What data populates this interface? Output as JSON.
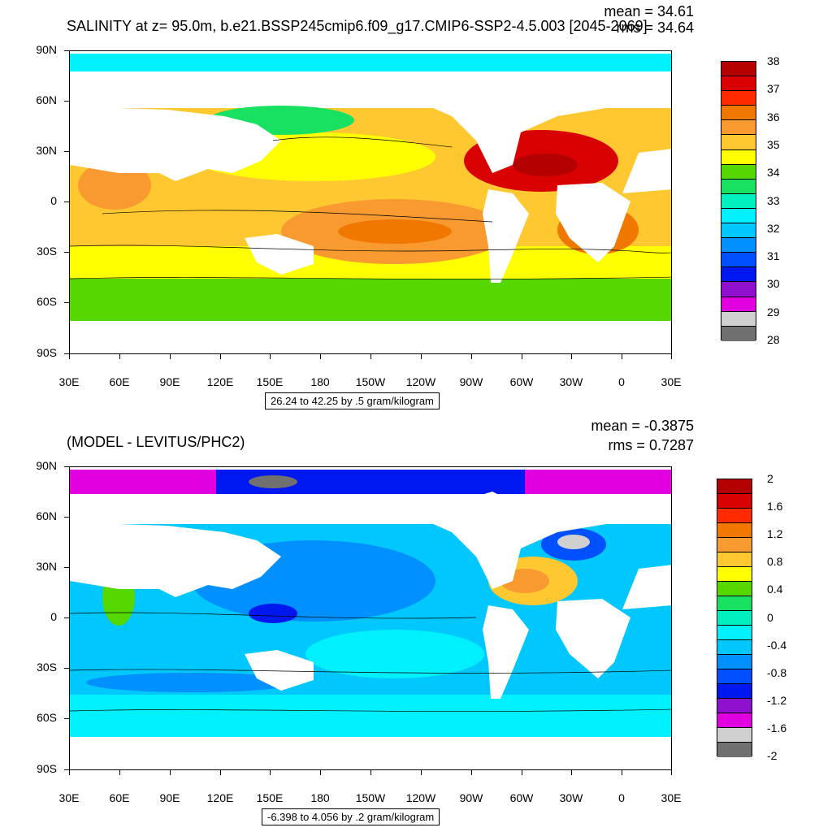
{
  "top": {
    "title": "SALINITY at z=  95.0m, b.e21.BSSP245cmip6.f09_g17.CMIP6-SSP2-4.5.003 [2045-2069]",
    "mean": "mean = 34.61",
    "rms": "rms = 34.64",
    "range": "26.24 to 42.25 by .5 gram/kilogram",
    "colorbar": {
      "labels": [
        "38",
        "37",
        "36",
        "35",
        "34",
        "33",
        "32",
        "31",
        "30",
        "29",
        "28"
      ],
      "colors": [
        "#b40000",
        "#d80000",
        "#ff2a00",
        "#f07800",
        "#f89a30",
        "#ffc830",
        "#ffff00",
        "#54d800",
        "#18e060",
        "#00f0c0",
        "#00f0ff",
        "#00c8ff",
        "#0090ff",
        "#0050ff",
        "#0018f0",
        "#9010d0",
        "#e000e0",
        "#d0d0d0",
        "#707070"
      ]
    }
  },
  "bottom": {
    "title": "(MODEL - LEVITUS/PHC2)",
    "mean": "mean = -0.3875",
    "rms": "rms = 0.7287",
    "range": "-6.398 to 4.056 by .2 gram/kilogram",
    "colorbar": {
      "labels": [
        "2",
        "1.6",
        "1.2",
        "0.8",
        "0.4",
        "0",
        "-0.4",
        "-0.8",
        "-1.2",
        "-1.6",
        "-2"
      ],
      "colors": [
        "#b40000",
        "#d80000",
        "#ff2a00",
        "#f07800",
        "#f89a30",
        "#ffc830",
        "#ffff00",
        "#54d800",
        "#18e060",
        "#00f0c0",
        "#00f0ff",
        "#00c8ff",
        "#0090ff",
        "#0050ff",
        "#0018f0",
        "#9010d0",
        "#e000e0",
        "#d0d0d0",
        "#707070"
      ]
    }
  },
  "axes": {
    "lat_labels": [
      "90N",
      "60N",
      "30N",
      "0",
      "30S",
      "60S",
      "90S"
    ],
    "lon_labels": [
      "30E",
      "60E",
      "90E",
      "120E",
      "150E",
      "180",
      "150W",
      "120W",
      "90W",
      "60W",
      "30W",
      "0",
      "30E"
    ]
  }
}
